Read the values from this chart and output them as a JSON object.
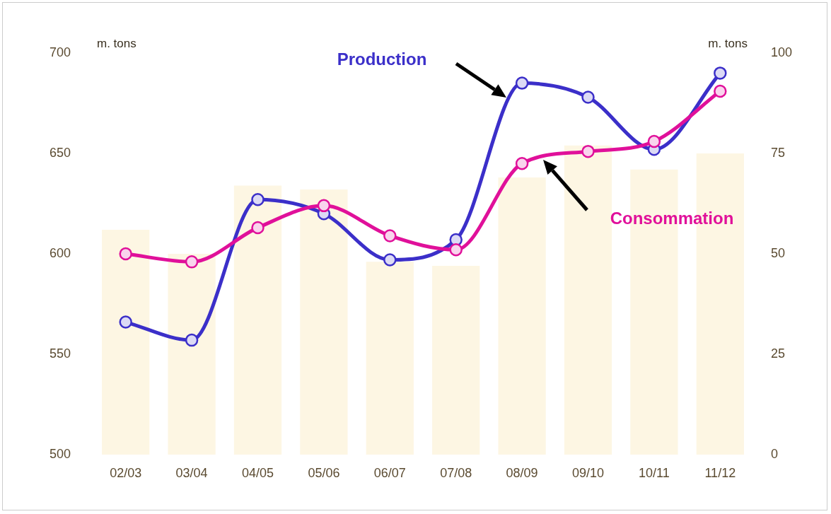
{
  "chart_data": {
    "type": "line",
    "categories": [
      "02/03",
      "03/04",
      "04/05",
      "05/06",
      "06/07",
      "07/08",
      "08/09",
      "09/10",
      "10/11",
      "11/12"
    ],
    "ylabel": "m. tons",
    "y2label": "m. tons",
    "series": [
      {
        "type": "bar",
        "axis": "y2",
        "color": "#fdf6e3",
        "values": [
          56,
          50,
          67,
          66,
          48,
          47,
          69,
          77,
          71,
          75
        ]
      },
      {
        "name": "Production",
        "color": "#3b2fc9",
        "values": [
          566,
          557,
          627,
          620,
          597,
          607,
          685,
          678,
          652,
          690
        ]
      },
      {
        "name": "Consommation",
        "color": "#e0109a",
        "values": [
          600,
          596,
          613,
          624,
          609,
          602,
          645,
          651,
          656,
          681
        ]
      }
    ],
    "ylim": [
      500,
      700
    ],
    "yticks": [
      500,
      550,
      600,
      650,
      700
    ],
    "y2lim": [
      0,
      100
    ],
    "y2ticks": [
      0,
      25,
      50,
      75,
      100
    ],
    "grid": false,
    "legend": false,
    "marker": "circle",
    "line_style": "solid"
  }
}
